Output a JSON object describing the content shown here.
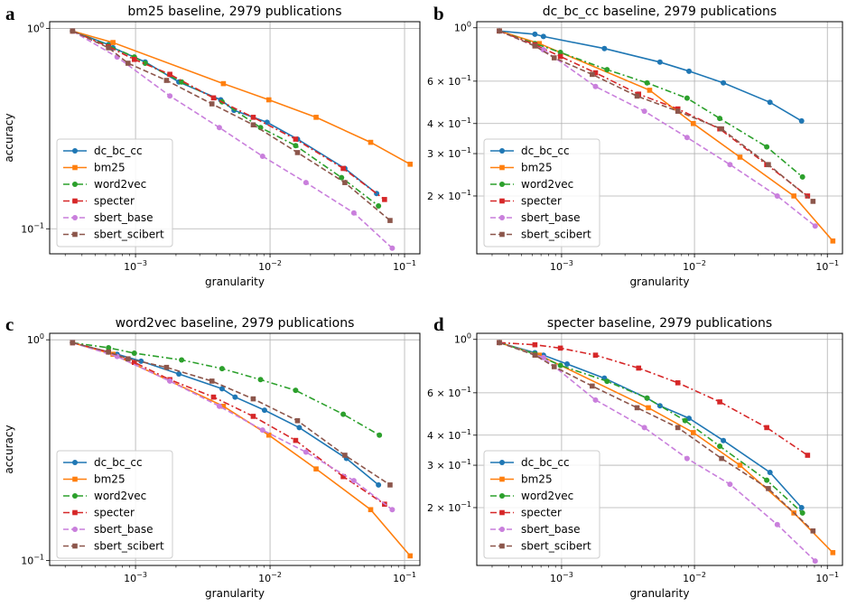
{
  "chart_data": [
    {
      "type": "line",
      "panel_letter": "a",
      "title": "bm25 baseline, 2979 publications",
      "xlabel": "granularity",
      "ylabel": "accuracy",
      "xscale": "log",
      "yscale": "log",
      "xlim": [
        0.00023,
        0.13
      ],
      "ylim": [
        0.075,
        1.08
      ],
      "grid": true,
      "legend_position": "lower-left",
      "x_ticks": [
        {
          "value": 0.001,
          "base": "10",
          "exp": "−3"
        },
        {
          "value": 0.01,
          "base": "10",
          "exp": "−2"
        },
        {
          "value": 0.1,
          "base": "10",
          "exp": "−1"
        }
      ],
      "y_ticks": [
        {
          "value": 1,
          "base": "10",
          "exp": "0"
        },
        {
          "value": 0.1,
          "base": "10",
          "exp": "−1"
        }
      ],
      "series": [
        {
          "name": "dc_bc_cc",
          "color": "#1f77b4",
          "dash": "solid",
          "marker": "circle",
          "x": [
            0.00034,
            0.00063,
            0.00068,
            0.00118,
            0.0021,
            0.0043,
            0.0054,
            0.0095,
            0.016,
            0.036,
            0.062
          ],
          "y": [
            0.97,
            0.83,
            0.8,
            0.68,
            0.54,
            0.44,
            0.39,
            0.34,
            0.28,
            0.2,
            0.15
          ]
        },
        {
          "name": "bm25",
          "color": "#ff7f0e",
          "dash": "solid",
          "marker": "square",
          "x": [
            0.00034,
            0.00068,
            0.0045,
            0.0098,
            0.022,
            0.056,
            0.11
          ],
          "y": [
            0.97,
            0.85,
            0.53,
            0.44,
            0.36,
            0.27,
            0.21
          ]
        },
        {
          "name": "word2vec",
          "color": "#2ca02c",
          "dash": "dashdot",
          "marker": "circle",
          "x": [
            0.00034,
            0.00063,
            0.00098,
            0.00118,
            0.0022,
            0.0044,
            0.0085,
            0.0155,
            0.034,
            0.064
          ],
          "y": [
            0.97,
            0.82,
            0.72,
            0.67,
            0.54,
            0.43,
            0.32,
            0.26,
            0.18,
            0.13
          ]
        },
        {
          "name": "specter",
          "color": "#d62728",
          "dash": "dashdot",
          "marker": "square",
          "x": [
            0.00034,
            0.00063,
            0.00098,
            0.0018,
            0.0038,
            0.0075,
            0.0155,
            0.035,
            0.071
          ],
          "y": [
            0.97,
            0.81,
            0.7,
            0.59,
            0.45,
            0.36,
            0.28,
            0.2,
            0.14
          ]
        },
        {
          "name": "sbert_base",
          "color": "#c97fdc",
          "dash": "dashed",
          "marker": "circle",
          "x": [
            0.00034,
            0.00073,
            0.0018,
            0.0042,
            0.0088,
            0.0185,
            0.042,
            0.081
          ],
          "y": [
            0.97,
            0.72,
            0.46,
            0.32,
            0.23,
            0.17,
            0.12,
            0.08
          ]
        },
        {
          "name": "sbert_scibert",
          "color": "#8c564b",
          "dash": "dashed",
          "marker": "square",
          "x": [
            0.00034,
            0.00063,
            0.00088,
            0.0017,
            0.0037,
            0.0075,
            0.016,
            0.036,
            0.078
          ],
          "y": [
            0.97,
            0.8,
            0.67,
            0.55,
            0.42,
            0.33,
            0.24,
            0.17,
            0.11
          ]
        }
      ]
    },
    {
      "type": "line",
      "panel_letter": "b",
      "title": "dc_bc_cc baseline, 2979 publications",
      "xlabel": "granularity",
      "ylabel": "",
      "xscale": "log",
      "yscale": "log",
      "xlim": [
        0.00023,
        0.13
      ],
      "ylim": [
        0.115,
        1.06
      ],
      "grid": true,
      "legend_position": "lower-left",
      "x_ticks": [
        {
          "value": 0.001,
          "base": "10",
          "exp": "−3"
        },
        {
          "value": 0.01,
          "base": "10",
          "exp": "−2"
        },
        {
          "value": 0.1,
          "base": "10",
          "exp": "−1"
        }
      ],
      "y_ticks": [
        {
          "value": 1,
          "base": "10",
          "exp": "0"
        },
        {
          "value": 0.6,
          "base": "6 × 10",
          "exp": "−1"
        },
        {
          "value": 0.4,
          "base": "4 × 10",
          "exp": "−1"
        },
        {
          "value": 0.3,
          "base": "3 × 10",
          "exp": "−1"
        },
        {
          "value": 0.2,
          "base": "2 × 10",
          "exp": "−1"
        }
      ],
      "series": [
        {
          "name": "dc_bc_cc",
          "color": "#1f77b4",
          "dash": "solid",
          "marker": "circle",
          "x": [
            0.00034,
            0.00063,
            0.00073,
            0.0021,
            0.0055,
            0.0091,
            0.0165,
            0.037,
            0.064
          ],
          "y": [
            0.97,
            0.94,
            0.92,
            0.82,
            0.72,
            0.66,
            0.59,
            0.49,
            0.41
          ]
        },
        {
          "name": "bm25",
          "color": "#ff7f0e",
          "dash": "solid",
          "marker": "square",
          "x": [
            0.00034,
            0.00068,
            0.0046,
            0.0098,
            0.022,
            0.056,
            0.11
          ],
          "y": [
            0.97,
            0.86,
            0.55,
            0.4,
            0.29,
            0.2,
            0.13
          ]
        },
        {
          "name": "word2vec",
          "color": "#2ca02c",
          "dash": "dashdot",
          "marker": "circle",
          "x": [
            0.00034,
            0.00063,
            0.00098,
            0.0022,
            0.0044,
            0.0088,
            0.0155,
            0.035,
            0.065
          ],
          "y": [
            0.97,
            0.86,
            0.79,
            0.67,
            0.59,
            0.51,
            0.42,
            0.32,
            0.24
          ]
        },
        {
          "name": "specter",
          "color": "#d62728",
          "dash": "dashdot",
          "marker": "square",
          "x": [
            0.00034,
            0.00063,
            0.00098,
            0.0018,
            0.0038,
            0.0075,
            0.0155,
            0.035,
            0.071
          ],
          "y": [
            0.97,
            0.85,
            0.76,
            0.65,
            0.53,
            0.46,
            0.38,
            0.27,
            0.2
          ]
        },
        {
          "name": "sbert_base",
          "color": "#c97fdc",
          "dash": "dashed",
          "marker": "circle",
          "x": [
            0.00034,
            0.00073,
            0.0018,
            0.0042,
            0.0088,
            0.0185,
            0.042,
            0.081
          ],
          "y": [
            0.97,
            0.81,
            0.57,
            0.45,
            0.35,
            0.27,
            0.2,
            0.15
          ]
        },
        {
          "name": "sbert_scibert",
          "color": "#8c564b",
          "dash": "dashed",
          "marker": "square",
          "x": [
            0.00034,
            0.00063,
            0.00088,
            0.0017,
            0.0037,
            0.0075,
            0.016,
            0.036,
            0.078
          ],
          "y": [
            0.97,
            0.84,
            0.75,
            0.64,
            0.52,
            0.45,
            0.38,
            0.27,
            0.19
          ]
        }
      ]
    },
    {
      "type": "line",
      "panel_letter": "c",
      "title": "word2vec baseline, 2979 publications",
      "xlabel": "granularity",
      "ylabel": "accuracy",
      "xscale": "log",
      "yscale": "log",
      "xlim": [
        0.00023,
        0.13
      ],
      "ylim": [
        0.095,
        1.07
      ],
      "grid": true,
      "legend_position": "lower-left",
      "x_ticks": [
        {
          "value": 0.001,
          "base": "10",
          "exp": "−3"
        },
        {
          "value": 0.01,
          "base": "10",
          "exp": "−2"
        },
        {
          "value": 0.1,
          "base": "10",
          "exp": "−1"
        }
      ],
      "y_ticks": [
        {
          "value": 1,
          "base": "10",
          "exp": "0"
        },
        {
          "value": 0.1,
          "base": "10",
          "exp": "−1"
        }
      ],
      "series": [
        {
          "name": "dc_bc_cc",
          "color": "#1f77b4",
          "dash": "solid",
          "marker": "circle",
          "x": [
            0.00034,
            0.00063,
            0.00073,
            0.0011,
            0.0021,
            0.0044,
            0.0055,
            0.0091,
            0.0165,
            0.037,
            0.064
          ],
          "y": [
            0.97,
            0.88,
            0.86,
            0.8,
            0.7,
            0.6,
            0.55,
            0.48,
            0.4,
            0.29,
            0.22
          ]
        },
        {
          "name": "bm25",
          "color": "#ff7f0e",
          "dash": "solid",
          "marker": "square",
          "x": [
            0.00034,
            0.00068,
            0.0045,
            0.0098,
            0.022,
            0.056,
            0.11
          ],
          "y": [
            0.97,
            0.86,
            0.5,
            0.37,
            0.26,
            0.17,
            0.105
          ]
        },
        {
          "name": "word2vec",
          "color": "#2ca02c",
          "dash": "dashdot",
          "marker": "circle",
          "x": [
            0.00034,
            0.00063,
            0.00098,
            0.0022,
            0.0044,
            0.0085,
            0.0155,
            0.035,
            0.065
          ],
          "y": [
            0.97,
            0.92,
            0.87,
            0.81,
            0.74,
            0.66,
            0.59,
            0.46,
            0.37
          ]
        },
        {
          "name": "specter",
          "color": "#d62728",
          "dash": "dashdot",
          "marker": "square",
          "x": [
            0.00034,
            0.00063,
            0.00098,
            0.0018,
            0.0038,
            0.0075,
            0.0155,
            0.035,
            0.071
          ],
          "y": [
            0.97,
            0.88,
            0.79,
            0.66,
            0.55,
            0.45,
            0.35,
            0.24,
            0.18
          ]
        },
        {
          "name": "sbert_base",
          "color": "#c97fdc",
          "dash": "dashed",
          "marker": "circle",
          "x": [
            0.00034,
            0.00073,
            0.0018,
            0.0042,
            0.0088,
            0.0185,
            0.042,
            0.081
          ],
          "y": [
            0.97,
            0.84,
            0.65,
            0.5,
            0.39,
            0.31,
            0.23,
            0.17
          ]
        },
        {
          "name": "sbert_scibert",
          "color": "#8c564b",
          "dash": "dashed",
          "marker": "square",
          "x": [
            0.00034,
            0.00063,
            0.00088,
            0.0017,
            0.0037,
            0.0075,
            0.016,
            0.036,
            0.078
          ],
          "y": [
            0.97,
            0.88,
            0.82,
            0.75,
            0.65,
            0.54,
            0.43,
            0.3,
            0.22
          ]
        }
      ]
    },
    {
      "type": "line",
      "panel_letter": "d",
      "title": "specter baseline, 2979 publications",
      "xlabel": "granularity",
      "ylabel": "",
      "xscale": "log",
      "yscale": "log",
      "xlim": [
        0.00023,
        0.13
      ],
      "ylim": [
        0.115,
        1.06
      ],
      "grid": true,
      "legend_position": "lower-left",
      "x_ticks": [
        {
          "value": 0.001,
          "base": "10",
          "exp": "−3"
        },
        {
          "value": 0.01,
          "base": "10",
          "exp": "−2"
        },
        {
          "value": 0.1,
          "base": "10",
          "exp": "−1"
        }
      ],
      "y_ticks": [
        {
          "value": 1,
          "base": "10",
          "exp": "0"
        },
        {
          "value": 0.6,
          "base": "6 × 10",
          "exp": "−1"
        },
        {
          "value": 0.4,
          "base": "4 × 10",
          "exp": "−1"
        },
        {
          "value": 0.3,
          "base": "3 × 10",
          "exp": "−1"
        },
        {
          "value": 0.2,
          "base": "2 × 10",
          "exp": "−1"
        }
      ],
      "series": [
        {
          "name": "dc_bc_cc",
          "color": "#1f77b4",
          "dash": "solid",
          "marker": "circle",
          "x": [
            0.00034,
            0.00063,
            0.00073,
            0.0011,
            0.0021,
            0.0044,
            0.0055,
            0.0091,
            0.0165,
            0.037,
            0.064
          ],
          "y": [
            0.97,
            0.88,
            0.86,
            0.79,
            0.69,
            0.57,
            0.53,
            0.47,
            0.38,
            0.28,
            0.2
          ]
        },
        {
          "name": "bm25",
          "color": "#ff7f0e",
          "dash": "solid",
          "marker": "square",
          "x": [
            0.00034,
            0.00068,
            0.0045,
            0.0098,
            0.022,
            0.056,
            0.11
          ],
          "y": [
            0.97,
            0.86,
            0.52,
            0.41,
            0.3,
            0.19,
            0.13
          ]
        },
        {
          "name": "word2vec",
          "color": "#2ca02c",
          "dash": "dashdot",
          "marker": "circle",
          "x": [
            0.00034,
            0.00063,
            0.00098,
            0.0022,
            0.0044,
            0.0085,
            0.0155,
            0.035,
            0.065
          ],
          "y": [
            0.97,
            0.87,
            0.78,
            0.67,
            0.57,
            0.46,
            0.36,
            0.26,
            0.19
          ]
        },
        {
          "name": "specter",
          "color": "#d62728",
          "dash": "dashdot",
          "marker": "square",
          "x": [
            0.00034,
            0.00063,
            0.00098,
            0.0018,
            0.0038,
            0.0075,
            0.0155,
            0.035,
            0.071
          ],
          "y": [
            0.97,
            0.95,
            0.92,
            0.86,
            0.76,
            0.66,
            0.55,
            0.43,
            0.33
          ]
        },
        {
          "name": "sbert_base",
          "color": "#c97fdc",
          "dash": "dashed",
          "marker": "circle",
          "x": [
            0.00034,
            0.00073,
            0.0018,
            0.0042,
            0.0088,
            0.0185,
            0.042,
            0.081
          ],
          "y": [
            0.97,
            0.84,
            0.56,
            0.43,
            0.32,
            0.25,
            0.17,
            0.12
          ]
        },
        {
          "name": "sbert_scibert",
          "color": "#8c564b",
          "dash": "dashed",
          "marker": "square",
          "x": [
            0.00034,
            0.00063,
            0.00088,
            0.0017,
            0.0037,
            0.0075,
            0.016,
            0.036,
            0.078
          ],
          "y": [
            0.97,
            0.86,
            0.77,
            0.64,
            0.52,
            0.43,
            0.32,
            0.24,
            0.16
          ]
        }
      ]
    }
  ]
}
